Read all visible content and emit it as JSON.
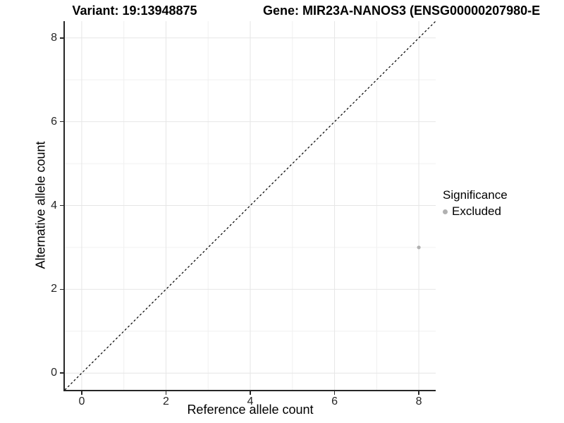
{
  "header": {
    "variant_title": "Variant: 19:13948875",
    "gene_title": "Gene: MIR23A-NANOS3 (ENSG00000207980-E"
  },
  "chart_data": {
    "type": "scatter",
    "xlabel": "Reference allele count",
    "ylabel": "Alternative allele count",
    "xlim": [
      -0.4,
      8.4
    ],
    "ylim": [
      -0.4,
      8.4
    ],
    "x_ticks": [
      0,
      2,
      4,
      6,
      8
    ],
    "y_ticks": [
      0,
      2,
      4,
      6,
      8
    ],
    "minor_gridlines": [
      1,
      3,
      5,
      7
    ],
    "grid": true,
    "identity_line": {
      "style": "dashed",
      "color": "#000000",
      "from": [
        -0.4,
        -0.4
      ],
      "to": [
        8.4,
        8.4
      ]
    },
    "series": [
      {
        "name": "Excluded",
        "color": "#b1b1b1",
        "points": [
          {
            "x": 8,
            "y": 3
          }
        ]
      }
    ],
    "legend": {
      "title": "Significance",
      "position": "right",
      "entries": [
        {
          "label": "Excluded",
          "color": "#b1b1b1"
        }
      ]
    },
    "colors": {
      "grid_major": "#e6e6e6",
      "grid_minor": "#f0f0f0",
      "axis_line": "#262626",
      "tick_text": "#262626"
    }
  }
}
